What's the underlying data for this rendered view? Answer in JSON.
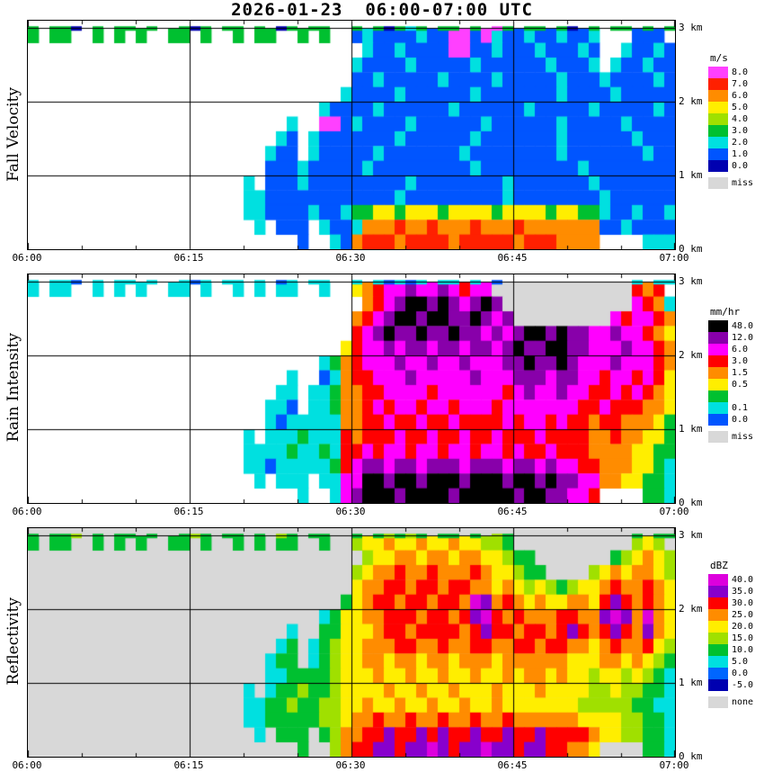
{
  "header": {
    "title": "2026-01-23  06:00-07:00 UTC"
  },
  "axes": {
    "x_ticks": [
      "06:00",
      "06:15",
      "06:30",
      "06:45",
      "07:00"
    ],
    "y_ticks": [
      {
        "label": "3 km",
        "km": 3
      },
      {
        "label": "2 km",
        "km": 2
      },
      {
        "label": "1 km",
        "km": 1
      },
      {
        "label": "0 km",
        "km": 0
      }
    ],
    "y_max_km": 3.1,
    "time_start": "06:00",
    "time_end": "07:00",
    "minutes_per_column": 1,
    "km_per_row": 0.2
  },
  "chart_data": [
    {
      "type": "heatmap",
      "title": "Fall Velocity",
      "unit": "m/s",
      "background": "#ffffff",
      "legend_position": "right",
      "palette": [
        {
          "ch": "a",
          "label": "8.0",
          "color": "#ff40ff"
        },
        {
          "ch": "b",
          "label": "7.0",
          "color": "#ff2000"
        },
        {
          "ch": "c",
          "label": "6.0",
          "color": "#ff8c00"
        },
        {
          "ch": "d",
          "label": "5.0",
          "color": "#ffee00"
        },
        {
          "ch": "e",
          "label": "4.0",
          "color": "#a0e000"
        },
        {
          "ch": "f",
          "label": "3.0",
          "color": "#00c030"
        },
        {
          "ch": "g",
          "label": "2.0",
          "color": "#00e0e0"
        },
        {
          "ch": "h",
          "label": "1.0",
          "color": "#0055ff"
        },
        {
          "ch": "i",
          "label": "0.0",
          "color": "#0000b0"
        }
      ],
      "missing": {
        "ch": "x",
        "label": "miss",
        "color": "#d8d8d8"
      },
      "top_line": "f.ffi.f.ff.f..fif.ff.f.if.ff..f.fifgf.ff.f.af.ff.fi.f.ff.f.f",
      "grid": [
        "f.ff..f.f.f..ff.f..f.ff..f.f..hghhhhghhaahaghhghhghhg...hhh.",
        "...............................ghhghhhhaahhghhhghhhgh..ghhgh",
        "..............................ghhhhghhhhhghhhhhhghhhg.ghhghh",
        "..............................hhghhhhhghhhhghhhhhghhhghhhhgh",
        ".............................ghhhhghhhhhhghhhhhhhghhhhghhhhh",
        "...........................ghhhhghhhhhhghhhhhhghhhhhghhhhhgh",
        "........................g..aahghhhhghhhhhhghhhhhhghhhhhghhhh",
        ".......................gh.ghhhhhhhghhhhhhghhhhhhhghhhhhhghhh",
        "......................ghh.ghhhhhghhhhhhhghhhhhhhhghhhhhhhghh",
        "......................hhhghhhhhghhhhhhhhhghhhhhhhhhghhhhhhhh",
        "....................g.hhhghhhhhhhhhghhhhhhhhghhhhhhhghhhhhhh",
        "....................gghhhhhhhhhhhhghhhhhhhhhghhhhhhhhghhhhhh",
        "....................gghhhhghhgffddfdddfddddfddddfddffghhghhg",
        "-....................g.hhh.ghhgcccbccbcccbcccbccccccchhghhhh",
        ".........................h..ghcbbbcbbbbcbbbbbcbbbcccc....ggg"
      ]
    },
    {
      "type": "heatmap",
      "title": "Rain Intensity",
      "unit": "mm/hr",
      "background": "#ffffff",
      "legend_position": "right",
      "palette": [
        {
          "ch": "a",
          "label": "48.0",
          "color": "#000000"
        },
        {
          "ch": "b",
          "label": "12.0",
          "color": "#8800aa"
        },
        {
          "ch": "c",
          "label": "6.0",
          "color": "#ff00ff"
        },
        {
          "ch": "d",
          "label": "3.0",
          "color": "#ff0000"
        },
        {
          "ch": "e",
          "label": "1.5",
          "color": "#ff8c00"
        },
        {
          "ch": "f",
          "label": "0.5",
          "color": "#ffee00"
        },
        {
          "ch": "g",
          "label": "",
          "color": "#00c030"
        },
        {
          "ch": "h",
          "label": "0.1",
          "color": "#00e0e0"
        },
        {
          "ch": "i",
          "label": "0.0",
          "color": "#0055ff"
        }
      ],
      "missing": {
        "ch": "x",
        "label": "miss",
        "color": "#d8d8d8"
      },
      "top_line": "h.hhi.h.hh.h..hih.hh.h.ih.hh..h.hihih.hh.h.i............h.hh",
      "grid": [
        "h.hh..h.h.h..hh.h..h.h.hh..h..fedccbccbcdccxxxxxxxxxxxxxded.",
        "...............................edcbaababcbabxxxxxxxxxxxxcdeh",
        "..............................edcbaabaabbabcbxxxxxxxxxcdccde",
        "..............................dcbabbabbabbcbcbaababbccbccdef",
        ".............................fdccbcbbcbbcbbcbabbaabbcccbccde",
        "...........................hgedcccbccbccbcccbbabbabcccbcccde",
        "........................h..iheddcccbcccccbcccbbbcbbccdccdcdf",
        ".......................hh.hhgeeddccccdccccccdcbccbccddcdcdef",
        "......................hhi.hhgeedcdccdccdcccdcccccccddcdddeef",
        "......................hihhhhheeddcddcddcddddcdccdcddeddeeefg",
        "....................h.hhhghhhdedddcddcddcddcdddcddddeedeeffg",
        "....................hhhhghhghddcdccdccdccdccdcddcdddeeeeffgg",
        "....................hhihhhhhgdcbbcbbcbbbcbbbcbbcbccddeeeffgh",
        ".....................h.hhh.hhccaabaabaaabaaabaababbcceeffggh",
        ".........................h..hcbaaabaaaabaaaaabaabbccd....ggh"
      ]
    },
    {
      "type": "heatmap",
      "title": "Reflectivity",
      "unit": "dBZ",
      "background": "#d8d8d8",
      "legend_position": "right",
      "palette": [
        {
          "ch": "a",
          "label": "40.0",
          "color": "#dd00dd"
        },
        {
          "ch": "b",
          "label": "35.0",
          "color": "#8800cc"
        },
        {
          "ch": "c",
          "label": "30.0",
          "color": "#ff0000"
        },
        {
          "ch": "d",
          "label": "25.0",
          "color": "#ff8c00"
        },
        {
          "ch": "e",
          "label": "20.0",
          "color": "#ffee00"
        },
        {
          "ch": "f",
          "label": "15.0",
          "color": "#a0e000"
        },
        {
          "ch": "g",
          "label": "10.0",
          "color": "#00c030"
        },
        {
          "ch": "h",
          "label": "5.0",
          "color": "#00e0e0"
        },
        {
          "ch": "i",
          "label": "0.0",
          "color": "#0066ff"
        },
        {
          "ch": "j",
          "label": "-5.0",
          "color": "#0000b0"
        }
      ],
      "missing": {
        "ch": "x",
        "label": "none",
        "color": "#d8d8d8"
      },
      "top_line": "g.ggf.g.gg.g..gfg.gg.g.fg.gg..g.gfgfg.gg.g.fg...........g.gg",
      "grid": [
        "g.gg..g.g.g..gg.g..g.g.gg..g..feedeedeedeeffg...........fef.",
        "...............................feeddeddeddeefgg.......gfedef",
        "..............................feddcddcdddcdeefgg....fededdef",
        "..............................eddccdccdccddedefefgfeedcddcde",
        ".............................gedccdccdccdabdcdedeeddecbcdcde",
        "...........................hgeeddcccdccdcbacdcdddccddbabdade",
        "........................h..ggeeedccdccccdcbccdccdcbcdcbcdbde",
        ".......................hg.hgfeedddccddcddccddccdccddedcddcef",
        "......................hgg.hgfeeddeddeddedddeddddddeeeddedefg",
        "......................hhggggfeeedeedeedeedeededdedeefeefefgh",
        "....................h.hggfggfeeeedeedeedeeedeeedeeeeffeffggh",
        "....................hhggfggffeedeedeedeedeedeeeeeeefffffgghh",
        "....................hhgggggffeddcddcddcddcddcddddddeeeeffggh",
        ".....................h.ggg.gfddccbccbcbccbccbccbccccdeeffggh",
        ".........................g..fdccbbcbbabcbbabbcbbccdde....ggh"
      ]
    }
  ]
}
